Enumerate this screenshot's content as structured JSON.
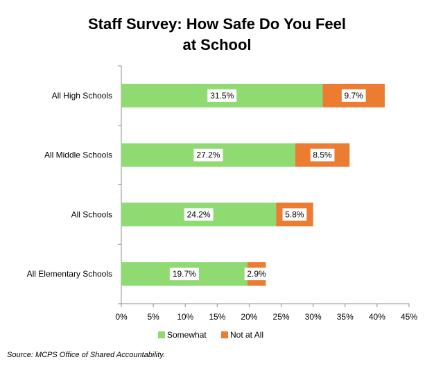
{
  "chart_data": {
    "type": "bar",
    "orientation": "horizontal",
    "stacked": true,
    "title_lines": [
      "Staff Survey: How Safe Do You Feel",
      "at School"
    ],
    "categories": [
      "All High Schools",
      "All Middle Schools",
      "All Schools",
      "All Elementary Schools"
    ],
    "series": [
      {
        "name": "Somewhat",
        "values": [
          31.5,
          27.2,
          24.2,
          19.7
        ],
        "labels": [
          "31.5%",
          "27.2%",
          "24.2%",
          "19.7%"
        ],
        "color": "#8fdb72"
      },
      {
        "name": "Not at All",
        "values": [
          9.7,
          8.5,
          5.8,
          2.9
        ],
        "labels": [
          "9.7%",
          "8.5%",
          "5.8%",
          "2.9%"
        ],
        "color": "#ec7c32"
      }
    ],
    "xlim": [
      0,
      45
    ],
    "xticks": [
      0,
      5,
      10,
      15,
      20,
      25,
      30,
      35,
      40,
      45
    ],
    "xtick_labels": [
      "0%",
      "5%",
      "10%",
      "15%",
      "20%",
      "25%",
      "30%",
      "35%",
      "40%",
      "45%"
    ],
    "grid": false,
    "legend_position": "bottom"
  },
  "source_note": "Source: MCPS Office of Shared Accountability."
}
